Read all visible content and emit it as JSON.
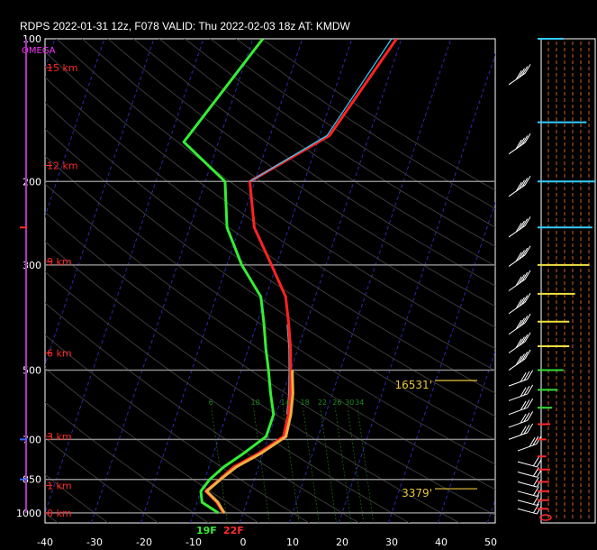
{
  "title": "RDPS 2022-01-31 12z, F078  VALID: Thu 2022-02-03 18z  AT: KMDW",
  "omega_label": "OMEGA",
  "colors": {
    "temperature": "#ff2222",
    "dewpoint": "#33ee33",
    "wetbulb": "#33ccff",
    "virtual_temp": "#f0b040",
    "isobar": "#8a8a8a",
    "isotherm": "#2a2aa8",
    "dry_adiabat": "#3a3a3a",
    "mixing_ratio": "#1c6a1c",
    "height_label": "#ff2a2a",
    "level_marker": "#e9c43a"
  },
  "chart_data": {
    "type": "line",
    "title": "RDPS 2022-01-31 12z, F078  VALID: Thu 2022-02-03 18z  AT: KMDW",
    "xlabel": "",
    "ylabel": "",
    "x_ticks": [
      "-40",
      "-30",
      "-20",
      "-10",
      "0",
      "10",
      "20",
      "30",
      "40",
      "50"
    ],
    "x_range": [
      -40,
      50
    ],
    "y_scale": "log",
    "y_ticks": [
      "100",
      "200",
      "300",
      "500",
      "700",
      "850",
      "1000"
    ],
    "y_range": [
      100,
      1050
    ],
    "height_labels": [
      "15 km",
      "12 km",
      "9 km",
      "6 km",
      "3 km",
      "1 km",
      "0 km"
    ],
    "height_pressures": [
      115,
      185,
      295,
      460,
      690,
      875,
      1000
    ],
    "mixing_ratio_labels": [
      "6",
      "10",
      "14",
      "18",
      "22",
      "26",
      "30",
      "34"
    ],
    "level_markers": [
      {
        "label": "16531'",
        "p": 535
      },
      {
        "label": "3379'",
        "p": 905
      }
    ],
    "surface_temp_label": "22F",
    "surface_dewpoint_label": "19F",
    "series": [
      {
        "key": "temperature",
        "p": [
          100,
          160,
          200,
          250,
          300,
          350,
          400,
          450,
          500,
          560,
          620,
          690,
          750,
          800,
          850,
          900,
          950,
          1000
        ],
        "t": [
          -1,
          -8,
          -21,
          -17,
          -11,
          -6,
          -3.5,
          -1.5,
          0,
          1.5,
          2.5,
          3,
          -1,
          -5,
          -7,
          -9,
          -6,
          -4
        ]
      },
      {
        "key": "dewpoint",
        "p": [
          100,
          165,
          200,
          250,
          300,
          350,
          400,
          450,
          500,
          560,
          620,
          690,
          750,
          800,
          850,
          900,
          950,
          1000
        ],
        "t": [
          -28,
          -37,
          -26,
          -22.5,
          -17,
          -11,
          -8.5,
          -6.5,
          -4.5,
          -2.5,
          -0.5,
          -0.5,
          -4,
          -7,
          -9,
          -10,
          -9,
          -5
        ]
      },
      {
        "key": "wetbulb",
        "p": [
          100,
          160,
          200
        ],
        "t": [
          -2,
          -8.5,
          -21
        ]
      },
      {
        "key": "virtual_temp",
        "p": [
          500,
          560,
          620,
          690,
          750,
          800,
          850,
          900,
          950,
          1000
        ],
        "t": [
          0.3,
          2,
          3,
          3.5,
          -0.5,
          -4.5,
          -6.8,
          -8.8,
          -5.8,
          -3.8
        ]
      }
    ],
    "wind_barbs_p": [
      125,
      175,
      215,
      262,
      302,
      340,
      380,
      420,
      460,
      500,
      540,
      580,
      620,
      660,
      700,
      740,
      780,
      820,
      860,
      900,
      940,
      980
    ],
    "omega_profile": {
      "p": [
        100,
        200,
        300,
        500,
        700,
        850,
        1000
      ],
      "value": [
        0,
        0,
        0,
        0,
        0,
        0,
        0
      ],
      "side_ticks_p": [
        250,
        700,
        850
      ]
    },
    "side_panel_bars": [
      {
        "p": 100,
        "color": "#33ccff",
        "length": 0.45
      },
      {
        "p": 150,
        "color": "#33ccff",
        "length": 0.85
      },
      {
        "p": 200,
        "color": "#33ccff",
        "length": 1.0
      },
      {
        "p": 250,
        "color": "#33ccff",
        "length": 0.95
      },
      {
        "p": 300,
        "color": "#f0e040",
        "length": 0.9
      },
      {
        "p": 345,
        "color": "#f0e040",
        "length": 0.65
      },
      {
        "p": 395,
        "color": "#f0e040",
        "length": 0.55
      },
      {
        "p": 445,
        "color": "#f0e040",
        "length": 0.55
      },
      {
        "p": 500,
        "color": "#33dd33",
        "length": 0.45
      },
      {
        "p": 550,
        "color": "#33dd33",
        "length": 0.35
      },
      {
        "p": 600,
        "color": "#33dd33",
        "length": 0.25
      },
      {
        "p": 650,
        "color": "#ff2a2a",
        "length": 0.22
      },
      {
        "p": 700,
        "color": "#ff2a2a",
        "length": 0.15
      },
      {
        "p": 760,
        "color": "#ff2a2a",
        "length": 0.15
      },
      {
        "p": 810,
        "color": "#ff2a2a",
        "length": 0.22
      },
      {
        "p": 860,
        "color": "#ff2a2a",
        "length": 0.2
      },
      {
        "p": 900,
        "color": "#ff2a2a",
        "length": 0.2
      },
      {
        "p": 940,
        "color": "#ff2a2a",
        "length": 0.2
      },
      {
        "p": 980,
        "color": "#ff2a2a",
        "length": 0.18
      }
    ]
  }
}
